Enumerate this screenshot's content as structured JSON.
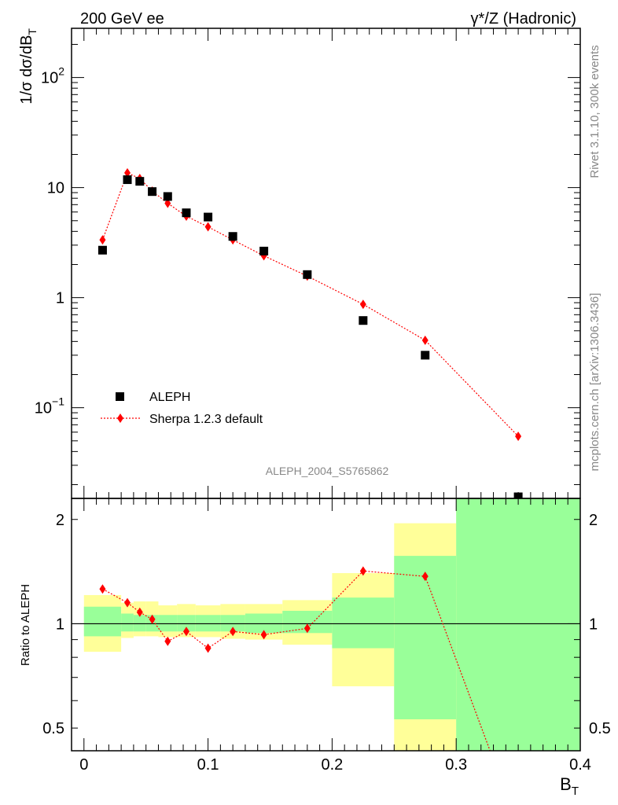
{
  "header": {
    "left_title": "200 GeV ee",
    "right_title": "γ*/Z (Hadronic)"
  },
  "side_labels": {
    "rivet": "Rivet 3.1.10,  300k events",
    "mcplots": "mcplots.cern.ch [arXiv:1306.3436]"
  },
  "watermark": "ALEPH_2004_S5765862",
  "colors": {
    "data": "#000000",
    "mc": "#ff0000",
    "band_inner": "#99ff99",
    "band_outer": "#ffff99"
  },
  "chart_data": [
    {
      "type": "scatter",
      "scale": "log",
      "ylabel": "1/σ  dσ/dB",
      "ylabel_sub": "T",
      "xlim": [
        -0.01,
        0.4
      ],
      "ylim": [
        0.015,
        280
      ],
      "yticks": [
        {
          "value": 100,
          "label": "10",
          "sup": "2"
        },
        {
          "value": 10,
          "label": "10",
          "sup": ""
        },
        {
          "value": 1,
          "label": "1",
          "sup": ""
        },
        {
          "value": 0.1,
          "label": "10",
          "sup": "−1"
        }
      ],
      "legend": {
        "position": "bottom-left",
        "entries": [
          "ALEPH",
          "Sherpa 1.2.3 default"
        ]
      },
      "series": [
        {
          "name": "ALEPH",
          "x": [
            0.015,
            0.035,
            0.045,
            0.055,
            0.0675,
            0.0825,
            0.1,
            0.12,
            0.145,
            0.18,
            0.225,
            0.275,
            0.35
          ],
          "values": [
            2.7,
            11.8,
            11.4,
            9.2,
            8.3,
            5.9,
            5.4,
            3.6,
            2.65,
            1.62,
            0.62,
            0.3,
            0.0155
          ]
        },
        {
          "name": "Sherpa 1.2.3 default",
          "x": [
            0.015,
            0.035,
            0.045,
            0.055,
            0.0675,
            0.0825,
            0.1,
            0.12,
            0.145,
            0.18,
            0.225,
            0.275,
            0.35
          ],
          "values": [
            3.35,
            13.6,
            12.1,
            9.3,
            7.2,
            5.5,
            4.4,
            3.35,
            2.4,
            1.57,
            0.87,
            0.41,
            0.055
          ]
        }
      ]
    },
    {
      "type": "line",
      "scale": "log",
      "ylabel": "Ratio to ALEPH",
      "xlabel": "B",
      "xlabel_sub": "T",
      "xlim": [
        -0.01,
        0.4
      ],
      "ylim": [
        0.43,
        2.3
      ],
      "xticks": [
        {
          "value": 0,
          "label": "0"
        },
        {
          "value": 0.1,
          "label": "0.1"
        },
        {
          "value": 0.2,
          "label": "0.2"
        },
        {
          "value": 0.3,
          "label": "0.3"
        },
        {
          "value": 0.4,
          "label": "0.4"
        }
      ],
      "yticks": [
        {
          "value": 0.5,
          "label": "0.5"
        },
        {
          "value": 1,
          "label": "1"
        },
        {
          "value": 2,
          "label": "2"
        }
      ],
      "bands": [
        {
          "x0": 0.0,
          "x1": 0.03,
          "outer": [
            0.83,
            1.21
          ],
          "inner": [
            0.92,
            1.12
          ]
        },
        {
          "x0": 0.03,
          "x1": 0.04,
          "outer": [
            0.91,
            1.15
          ],
          "inner": [
            0.95,
            1.07
          ]
        },
        {
          "x0": 0.04,
          "x1": 0.05,
          "outer": [
            0.92,
            1.16
          ],
          "inner": [
            0.95,
            1.06
          ]
        },
        {
          "x0": 0.05,
          "x1": 0.06,
          "outer": [
            0.92,
            1.16
          ],
          "inner": [
            0.95,
            1.06
          ]
        },
        {
          "x0": 0.06,
          "x1": 0.075,
          "outer": [
            0.915,
            1.13
          ],
          "inner": [
            0.95,
            1.06
          ]
        },
        {
          "x0": 0.075,
          "x1": 0.09,
          "outer": [
            0.915,
            1.14
          ],
          "inner": [
            0.95,
            1.06
          ]
        },
        {
          "x0": 0.09,
          "x1": 0.11,
          "outer": [
            0.915,
            1.13
          ],
          "inner": [
            0.95,
            1.06
          ]
        },
        {
          "x0": 0.11,
          "x1": 0.13,
          "outer": [
            0.905,
            1.14
          ],
          "inner": [
            0.95,
            1.06
          ]
        },
        {
          "x0": 0.13,
          "x1": 0.16,
          "outer": [
            0.9,
            1.14
          ],
          "inner": [
            0.94,
            1.07
          ]
        },
        {
          "x0": 0.16,
          "x1": 0.2,
          "outer": [
            0.87,
            1.17
          ],
          "inner": [
            0.94,
            1.09
          ]
        },
        {
          "x0": 0.2,
          "x1": 0.25,
          "outer": [
            0.66,
            1.4
          ],
          "inner": [
            0.85,
            1.19
          ]
        },
        {
          "x0": 0.25,
          "x1": 0.3,
          "outer": [
            0.43,
            1.95
          ],
          "inner": [
            0.53,
            1.57
          ]
        },
        {
          "x0": 0.3,
          "x1": 0.4,
          "outer": [
            0.43,
            2.3
          ],
          "inner": [
            0.43,
            2.3
          ]
        }
      ],
      "series": [
        {
          "name": "Sherpa 1.2.3 default",
          "x": [
            0.015,
            0.035,
            0.045,
            0.055,
            0.0675,
            0.0825,
            0.1,
            0.12,
            0.145,
            0.18,
            0.225,
            0.275,
            0.35
          ],
          "values": [
            1.26,
            1.15,
            1.08,
            1.03,
            0.89,
            0.95,
            0.85,
            0.95,
            0.93,
            0.97,
            1.42,
            1.37,
            0.26
          ]
        }
      ]
    }
  ]
}
